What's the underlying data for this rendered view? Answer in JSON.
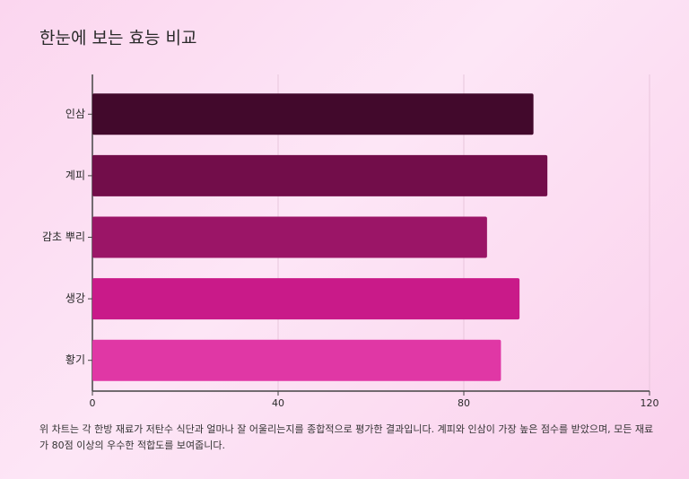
{
  "chart_data": {
    "type": "bar",
    "orientation": "horizontal",
    "title": "한눈에 보는 효능 비교",
    "categories": [
      "인삼",
      "계피",
      "감초 뿌리",
      "생강",
      "황기"
    ],
    "values": [
      95,
      98,
      85,
      92,
      88
    ],
    "colors": [
      "#42092c",
      "#720d4a",
      "#9b1567",
      "#c91a89",
      "#e037a5"
    ],
    "xlim": [
      0,
      120
    ],
    "xticks": [
      0,
      40,
      80,
      120
    ],
    "grid": true,
    "note": "위 차트는 각 한방 재료가 저탄수 식단과 얼마나 잘 어울리는지를 종합적으로 평가한 결과입니다. 계피와 인삼이 가장 높은 점수를 받았으며, 모든 재료가 80점 이상의 우수한 적합도를 보여줍니다."
  }
}
